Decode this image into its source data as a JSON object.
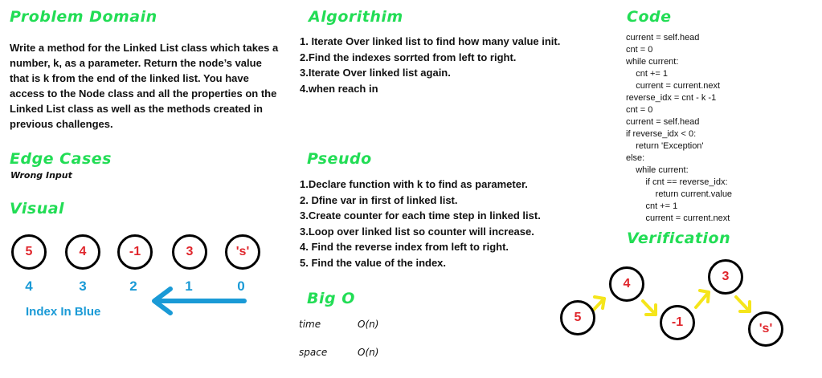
{
  "problem": {
    "heading": "Problem Domain",
    "text": "Write a method for the Linked List class which takes a number, k, as a parameter. Return the node’s value that is k from the end of the linked list. You have access to the Node class and all the properties on the Linked List class as well as the methods created in previous challenges."
  },
  "edge": {
    "heading": "Edge Cases",
    "text": "Wrong Input"
  },
  "visual": {
    "heading": "Visual",
    "nodes": [
      "5",
      "4",
      "-1",
      "3",
      "'s'"
    ],
    "indexes": [
      "4",
      "3",
      "2",
      "1",
      "0"
    ],
    "caption": "Index In Blue"
  },
  "algorithm": {
    "heading": "Algorithim",
    "steps": [
      "1. Iterate Over linked list to find how many value init.",
      "2.Find the indexes sorrted from left to right.",
      "3.Iterate Over linked list again.",
      "4.when reach in"
    ]
  },
  "pseudo": {
    "heading": "Pseudo",
    "steps": [
      "1.Declare function with k to find as parameter.",
      "2. Dfine var in first of linked list.",
      "3.Create counter for each time step in linked list.",
      "3.Loop over linked list so counter will increase.",
      "4. Find the reverse index from left to right.",
      "5. Find the value of the index."
    ]
  },
  "bigo": {
    "heading": "Big O",
    "time_label": "time",
    "time_value": "O(n)",
    "space_label": "space",
    "space_value": "O(n)"
  },
  "code": {
    "heading": "Code",
    "lines": [
      "current = self.head",
      "cnt = 0",
      "while current:",
      "    cnt += 1",
      "    current = current.next",
      "reverse_idx = cnt - k -1",
      "cnt = 0",
      "current = self.head",
      "if reverse_idx < 0:",
      "    return 'Exception'",
      "else:",
      "    while current:",
      "        if cnt == reverse_idx:",
      "            return current.value",
      "        cnt += 1",
      "        current = current.next"
    ]
  },
  "verification": {
    "heading": "Verification",
    "nodes": [
      "5",
      "4",
      "-1",
      "3",
      "'s'"
    ]
  },
  "colors": {
    "heading": "#22dd55",
    "node_text": "#e0262c",
    "index": "#1a9ad6",
    "arrow_yellow": "#f5e51b"
  }
}
